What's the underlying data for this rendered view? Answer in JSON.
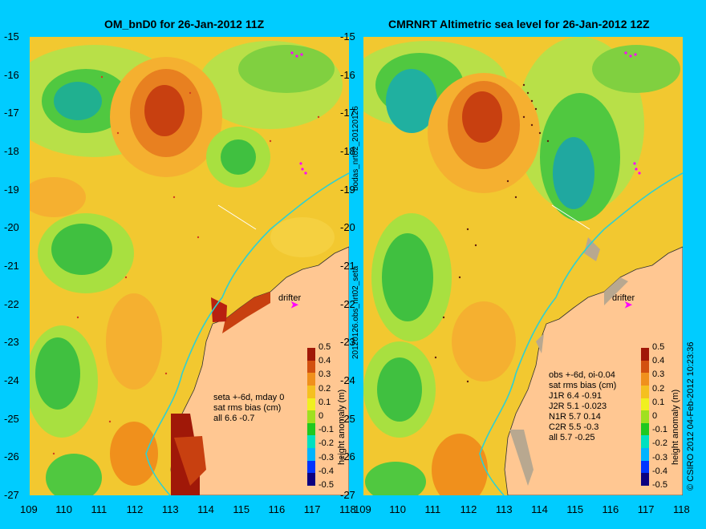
{
  "left_title": "OM_bnD0 for 26-Jan-2012 11Z",
  "right_title": "CMRNRT Altimetric sea level  for 26-Jan-2012 12Z",
  "lat_ticks": [
    "-15",
    "-16",
    "-17",
    "-18",
    "-19",
    "-20",
    "-21",
    "-22",
    "-23",
    "-24",
    "-25",
    "-26",
    "-27"
  ],
  "lon_ticks": [
    "109",
    "110",
    "111",
    "112",
    "113",
    "114",
    "115",
    "116",
    "117",
    "118"
  ],
  "left_labels": {
    "drifter": "drifter",
    "stats": [
      "seta +-6d, mday 0",
      "sat rms bias (cm)",
      "all 6.6 -0.7"
    ]
  },
  "right_labels": {
    "drifter": "drifter",
    "stats": [
      "obs +-6d, oi-0.04",
      "sat rms bias (cm)",
      "J1R   6.4 -0.91",
      "J2R   5.1 -0.023",
      "N1R   5.7 0.14",
      "C2R   5.5 -0.3",
      "all 5.7 -0.25"
    ]
  },
  "middle_vertical_labels": [
    "bodas_nrt02_20120126",
    "20120126.obs_nrt02_seta"
  ],
  "colorbar": {
    "label": "height anomaly (m)",
    "ticks": [
      "0.5",
      "0.4",
      "0.3",
      "0.2",
      "0.1",
      "0",
      "-0.1",
      "-0.2",
      "-0.3",
      "-0.4",
      "-0.5"
    ],
    "colors": [
      "#0b0080",
      "#0034ff",
      "#00b4ff",
      "#00e0c0",
      "#20c820",
      "#a0e020",
      "#f0f020",
      "#f5c020",
      "#f0901c",
      "#d25010",
      "#a01808"
    ]
  },
  "credit": "© CSIRO 2012  04-Feb-2012 10:23:36"
}
